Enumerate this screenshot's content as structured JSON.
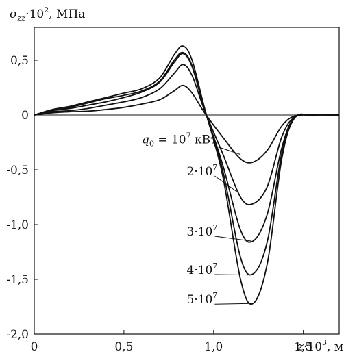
{
  "chart_data": {
    "type": "line",
    "ylabel": {
      "symbol": "σ",
      "subscript": "zz",
      "factor": "·10",
      "power": "2",
      "unit": ", МПа"
    },
    "xlabel": {
      "symbol": "z",
      "factor": "·10",
      "power": "3",
      "unit": ", м"
    },
    "xlim": [
      0,
      1.7
    ],
    "ylim": [
      -2.0,
      0.8
    ],
    "x_ticks": [
      {
        "value": 0,
        "label": "0"
      },
      {
        "value": 0.5,
        "label": "0,5"
      },
      {
        "value": 1.0,
        "label": "1,0"
      },
      {
        "value": 1.5,
        "label": "1,5"
      }
    ],
    "y_ticks": [
      {
        "value": 0.5,
        "label": "0,5"
      },
      {
        "value": 0,
        "label": "0"
      },
      {
        "value": -0.5,
        "label": "-0,5"
      },
      {
        "value": -1.0,
        "label": "-1,0"
      },
      {
        "value": -1.5,
        "label": "-1,5"
      },
      {
        "value": -2.0,
        "label": "-2,0"
      }
    ],
    "grid": false,
    "zero_line": true,
    "series": [
      {
        "name": "q0 = 10^7 кВт",
        "label": {
          "pre": "q",
          "sub": "0",
          "mid": " = 10",
          "power": "7",
          "post": " кВт"
        },
        "x": [
          0,
          0.1,
          0.2,
          0.3,
          0.4,
          0.5,
          0.6,
          0.7,
          0.78,
          0.83,
          0.88,
          0.95,
          1.05,
          1.15,
          1.22,
          1.3,
          1.38,
          1.45,
          1.55,
          1.7
        ],
        "y": [
          0,
          0.02,
          0.03,
          0.035,
          0.05,
          0.07,
          0.1,
          0.14,
          0.22,
          0.27,
          0.2,
          0.02,
          -0.2,
          -0.4,
          -0.43,
          -0.32,
          -0.1,
          -0.01,
          0,
          0
        ]
      },
      {
        "name": "2·10^7",
        "label": {
          "pre": "2·10",
          "power": "7"
        },
        "x": [
          0,
          0.1,
          0.2,
          0.3,
          0.4,
          0.5,
          0.6,
          0.7,
          0.78,
          0.83,
          0.88,
          0.95,
          1.05,
          1.15,
          1.22,
          1.3,
          1.38,
          1.45,
          1.55,
          1.7
        ],
        "y": [
          0,
          0.03,
          0.04,
          0.06,
          0.09,
          0.12,
          0.16,
          0.24,
          0.38,
          0.46,
          0.36,
          0.04,
          -0.35,
          -0.75,
          -0.81,
          -0.65,
          -0.2,
          -0.02,
          0,
          0
        ]
      },
      {
        "name": "3·10^7",
        "label": {
          "pre": "3·10",
          "power": "7"
        },
        "x": [
          0,
          0.1,
          0.2,
          0.3,
          0.4,
          0.5,
          0.6,
          0.7,
          0.78,
          0.83,
          0.88,
          0.95,
          1.05,
          1.15,
          1.22,
          1.3,
          1.38,
          1.45,
          1.55,
          1.7
        ],
        "y": [
          0,
          0.04,
          0.06,
          0.09,
          0.12,
          0.16,
          0.21,
          0.3,
          0.48,
          0.56,
          0.44,
          0.05,
          -0.45,
          -1.05,
          -1.15,
          -0.9,
          -0.3,
          -0.02,
          0,
          0
        ]
      },
      {
        "name": "4·10^7",
        "label": {
          "pre": "4·10",
          "power": "7"
        },
        "x": [
          0,
          0.1,
          0.2,
          0.3,
          0.4,
          0.5,
          0.6,
          0.7,
          0.78,
          0.83,
          0.88,
          0.95,
          1.05,
          1.15,
          1.22,
          1.3,
          1.38,
          1.45,
          1.55,
          1.7
        ],
        "y": [
          0,
          0.04,
          0.07,
          0.11,
          0.15,
          0.18,
          0.22,
          0.31,
          0.5,
          0.57,
          0.45,
          0.05,
          -0.5,
          -1.3,
          -1.45,
          -1.15,
          -0.35,
          -0.03,
          0,
          0
        ]
      },
      {
        "name": "5·10^7",
        "label": {
          "pre": "5·10",
          "power": "7"
        },
        "x": [
          0,
          0.1,
          0.2,
          0.3,
          0.4,
          0.5,
          0.6,
          0.7,
          0.78,
          0.83,
          0.88,
          0.95,
          1.05,
          1.15,
          1.22,
          1.3,
          1.38,
          1.45,
          1.55,
          1.7
        ],
        "y": [
          0,
          0.05,
          0.08,
          0.12,
          0.16,
          0.2,
          0.24,
          0.34,
          0.55,
          0.63,
          0.5,
          0.06,
          -0.55,
          -1.5,
          -1.72,
          -1.35,
          -0.4,
          -0.03,
          0,
          0
        ]
      }
    ],
    "annotations": [
      {
        "series": 0,
        "text_at": [
          0.6,
          -0.26
        ],
        "point": [
          1.15,
          -0.36
        ]
      },
      {
        "series": 1,
        "text_at": [
          0.85,
          -0.55
        ],
        "point": [
          1.13,
          -0.7
        ]
      },
      {
        "series": 2,
        "text_at": [
          0.85,
          -1.1
        ],
        "point": [
          1.21,
          -1.15
        ]
      },
      {
        "series": 3,
        "text_at": [
          0.85,
          -1.45
        ],
        "point": [
          1.2,
          -1.46
        ]
      },
      {
        "series": 4,
        "text_at": [
          0.85,
          -1.72
        ],
        "point": [
          1.21,
          -1.72
        ]
      }
    ]
  }
}
